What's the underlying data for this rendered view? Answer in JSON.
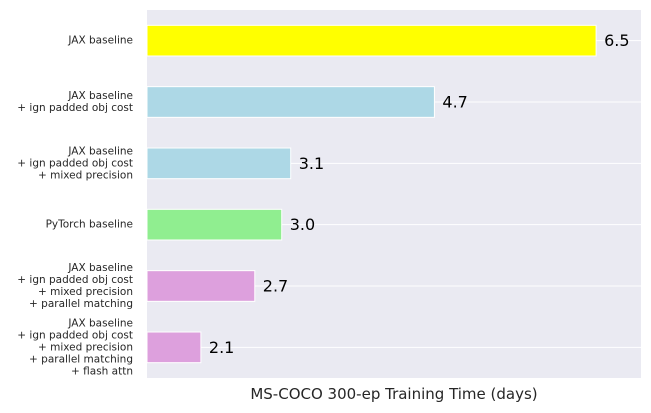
{
  "chart_data": {
    "type": "bar",
    "orientation": "horizontal",
    "categories": [
      [
        "JAX baseline"
      ],
      [
        "JAX baseline",
        "+ ign padded obj cost"
      ],
      [
        "JAX baseline",
        "+ ign padded obj cost",
        "+ mixed precision"
      ],
      [
        "PyTorch baseline"
      ],
      [
        "JAX baseline",
        "+ ign padded obj cost",
        "+ mixed precision",
        "+ parallel matching"
      ],
      [
        "JAX baseline",
        "+ ign padded obj cost",
        "+ mixed precision",
        "+ parallel matching",
        "+ flash attn"
      ]
    ],
    "values": [
      6.5,
      4.7,
      3.1,
      3.0,
      2.7,
      2.1
    ],
    "data_labels": [
      "6.5",
      "4.7",
      "3.1",
      "3.0",
      "2.7",
      "2.1"
    ],
    "colors": [
      "#ffff00",
      "#add8e6",
      "#add8e6",
      "#90ee90",
      "#dda0dd",
      "#dda0dd"
    ],
    "xlabel": "MS-COCO 300-ep Training Time (days)",
    "ylabel": "",
    "title": "",
    "xlim": [
      1.5,
      7.0
    ],
    "grid": true,
    "background": "#eaeaf2",
    "grid_color": "#ffffff"
  }
}
